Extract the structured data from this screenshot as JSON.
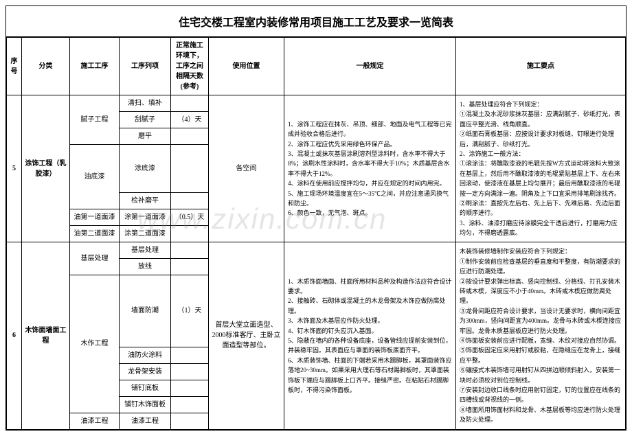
{
  "title": "住宅交楼工程室内装修常用项目施工工艺及要求一览简表",
  "header": {
    "seq": "序号",
    "category": "分类",
    "process": "施工工序",
    "step": "工序列项",
    "days": "正常施工环境下，工序之间相隔天数(参考)",
    "location": "使用位置",
    "rule": "一般规定",
    "point": "施工要点"
  },
  "row5": {
    "seq": "5",
    "category": "涂饰工程（乳胶漆）",
    "p1": "腻子工程",
    "p1s1": "清扫、填补",
    "p1s2": "刮腻子",
    "p1s2d": "（4）天",
    "p1s3": "磨平",
    "p2": "油底漆",
    "p2s1": "涂底漆",
    "p2s2": "检补磨平",
    "p3": "油第一道面漆",
    "p3s1": "涂第一道面漆",
    "p3s1d": "（0.5）天",
    "p4": "油第二道面漆",
    "p4s1": "涂第二道面漆",
    "location": "各空间",
    "rule": "1、涂饰工程应在抹灰、吊顶、细部、地面及电气工程等已完成并验收合格后进行。\n2、涂饰工程应优先采用绿色环保产品。\n3、混凝土或抹灰基层涂刷溶剂型涂料时，含水率不得大于8%；涂刷水性涂料时，含水率不得大于10%；木质基层含水率不得大于12%。\n4、涂料在使用前应搅拌均匀，并应在规定的时间内用完。\n5、施工现场环境温度宜在5～35℃之间，并应注意通风换气和防尘。\n6、颜色一致，无气泡、斑点。",
    "point": "1、基层处理应符合下列规定：\n①混凝土及水泥砂浆抹灰基层：应满刮腻子、砂纸打光，表面应平整光滑、线角顺直。\n②纸面石膏板基层：应按设计要求对板缝、钉眼进行处理后，满刮腻子、砂纸打光。\n2、涂饰施工一般方法：\n①滚涂法：将醮取漆液的毛辊先按W方式运动将涂料大致涂在基层上，然后用不醮取漆液的毛辊紧贴基层上下、左右来回滚动，使漆液在基层上均匀展开；最后用醮取漆液的毛辊按一定方向满涂一遍。阴角及上下口宜采用排笔刷涂找齐。\n②刷涂法：直按先左后右、先上后下、先难后易、先边后面的顺序进行。\n3、涂料、油漆打磨应待涂膜完全干透后进行，打磨用力应均匀，不得磨透露底。"
  },
  "row6": {
    "seq": "6",
    "category": "木饰面墙面工程",
    "p1": "基层处理",
    "p1s1": "基层处理",
    "p1s2": "放线",
    "p2": "木作工程",
    "p2s1": "墙面防潮",
    "p2s1d": "（1）天",
    "p2s2": "油防火涂料",
    "p2s3": "龙骨架安装",
    "p2s4": "铺钉底板",
    "p2s5": "铺钉木饰面板",
    "p3": "油漆工程",
    "p3s1": "油漆工程",
    "location": "首层大堂立面造型、2000标准客厅、主卧立面造型等部位。",
    "rule": "1、木质饰面墙面、柱面所用材料品种及构造作法应符合设计要求。\n2、接触砖、石砌体或混凝土的木龙骨架及木饰应做防腐处理。\n3、木饰面及木基层应作防火处理。\n4、钉木饰面的钉头应沉入基面。\n5、隐蔽在墙内的各种设备底座，设备管线应提前安装到位，并装稳牢固。其表面应与罩面的装饰板底面齐平。\n6、木质装饰墙、柱面的下端若采用木踢脚板，其罩面装饰应落地20~30mm。如果采用大理石等石材踢脚板时，其罩面装饰板下端应与踢脚板上口齐平。接缝严密。在粘贴石材踢脚板时，不得污染饰面板。",
    "point": "木装饰装修墙制作安装应符合下列规定：\n①制作安装前应检查基层的垂直度和平整度，有防潮要求的应进行防潮处理。\n②按设计要求弹出标高、竖向控制线、分格线、打孔安装木砖或木楔，深度应不小于40mm。木砖或木楔应做防腐处理。\n③龙骨间距应符合设计要求，当设计无要求时，横向间距宜为300mm，竖向间距宜为400mm。龙骨与木砖或木楔连接应牢固。龙骨木质基层板应进行防火处理。\n④饰面板安装前应进行配板，宽缝、木纹对接应自然协调。\n⑤饰面板固定应采用射钉或胶粘，在隐缝应在龙骨上，接缝应平整。\n⑥镶接式木装饰墙可用射钉从四拼边顺倾斜射入，安装第一块时必须校对到位控制线。\n⑦安装封边收口线条时应用射钉固定，钉的位置应在线条的四槽线或背视线的一侧。\n⑧墙面所用饰面材料和龙骨、木基层板等均应进行防火处理及防火处理。"
  },
  "watermark": "www.zixin.com.cn"
}
